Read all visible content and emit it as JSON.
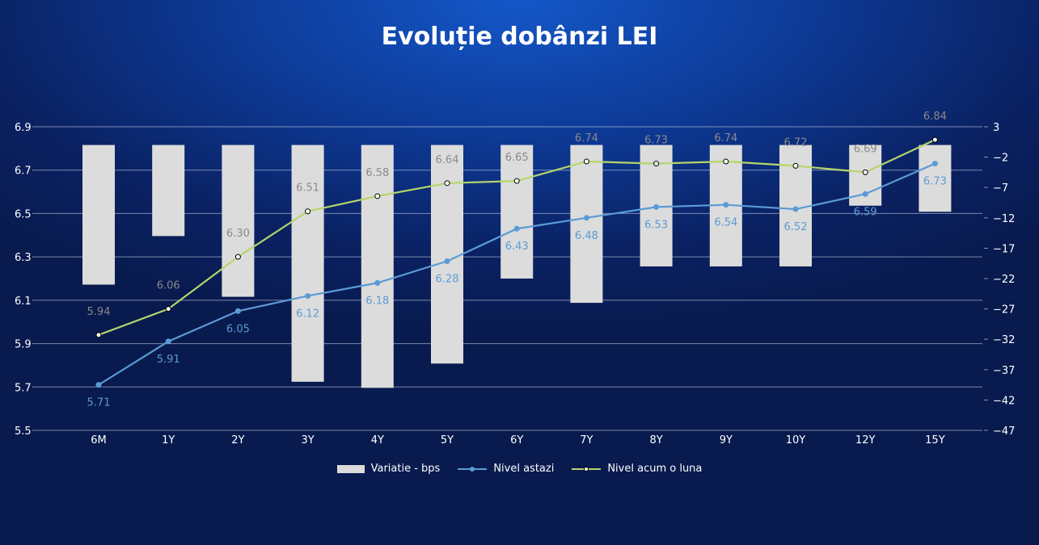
{
  "chart_data": {
    "type": "bar+line",
    "title": "Evoluție dobânzi LEI",
    "categories": [
      "6M",
      "1Y",
      "2Y",
      "3Y",
      "4Y",
      "5Y",
      "6Y",
      "7Y",
      "8Y",
      "9Y",
      "10Y",
      "12Y",
      "15Y"
    ],
    "series": [
      {
        "name": "Variatie - bps",
        "type": "bar",
        "axis": "right",
        "color": "#dcdcdc",
        "values": [
          -23,
          -15,
          -25,
          -39,
          -40,
          -36,
          -22,
          -26,
          -20,
          -20,
          -20,
          -10,
          -11
        ]
      },
      {
        "name": "Nivel astazi",
        "type": "line",
        "axis": "left",
        "color": "#5b9bd5",
        "values": [
          5.71,
          5.91,
          6.05,
          6.12,
          6.18,
          6.28,
          6.43,
          6.48,
          6.53,
          6.54,
          6.52,
          6.59,
          6.73
        ]
      },
      {
        "name": "Nivel acum o luna",
        "type": "line",
        "axis": "left",
        "color": "#b5d56a",
        "values": [
          5.94,
          6.06,
          6.3,
          6.51,
          6.58,
          6.64,
          6.65,
          6.74,
          6.73,
          6.74,
          6.72,
          6.69,
          6.84
        ]
      }
    ],
    "y_left": {
      "range": [
        5.5,
        6.9
      ],
      "ticks": [
        "6.9",
        "6.7",
        "6.5",
        "6.3",
        "6.1",
        "5.9",
        "5.7",
        "5.5"
      ]
    },
    "y_right": {
      "range": [
        -47,
        3
      ],
      "ticks": [
        "3",
        "-2",
        "-7",
        "-12",
        "-17",
        "-22",
        "-27",
        "-32",
        "-37",
        "-42",
        "-47"
      ]
    },
    "grid": true,
    "legend": "bottom"
  }
}
